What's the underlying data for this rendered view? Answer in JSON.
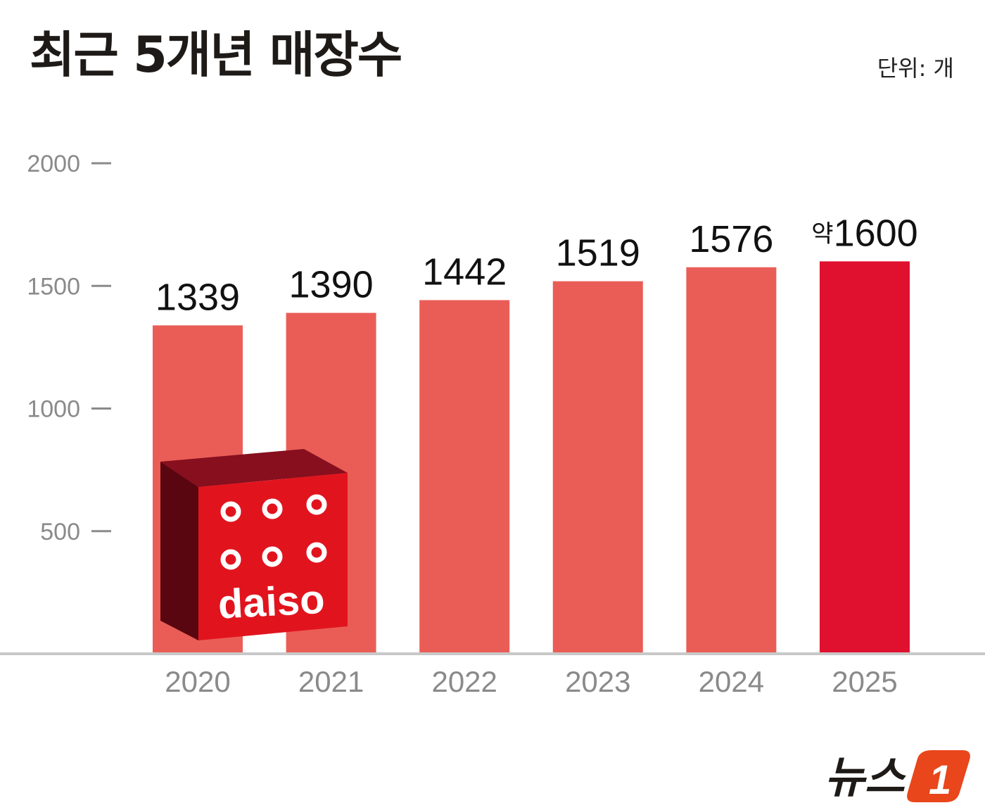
{
  "title": "최근 5개년 매장수",
  "unit_label": "단위: 개",
  "colors": {
    "bar": "#ea5d57",
    "highlight": "#e0102f",
    "axis": "#c8c8c8",
    "tick_text": "#8a8a8a"
  },
  "chart_data": {
    "type": "bar",
    "title": "최근 5개년 매장수",
    "categories": [
      "2020",
      "2021",
      "2022",
      "2023",
      "2024",
      "2025"
    ],
    "values": [
      1339,
      1390,
      1442,
      1519,
      1576,
      1600
    ],
    "value_labels": [
      "1339",
      "1390",
      "1442",
      "1519",
      "1576",
      "1600"
    ],
    "value_prefixes": [
      "",
      "",
      "",
      "",
      "",
      "약"
    ],
    "highlight_index": 5,
    "yticks": [
      500,
      1000,
      1500,
      2000
    ],
    "ylim": [
      0,
      2000
    ],
    "grid": false,
    "xlabel": "",
    "ylabel": ""
  },
  "box_logo": {
    "text": "daiso",
    "icon": "daiso-box-icon"
  },
  "brand": {
    "text": "뉴스",
    "mark": "1",
    "icon": "news1-logo-icon"
  }
}
